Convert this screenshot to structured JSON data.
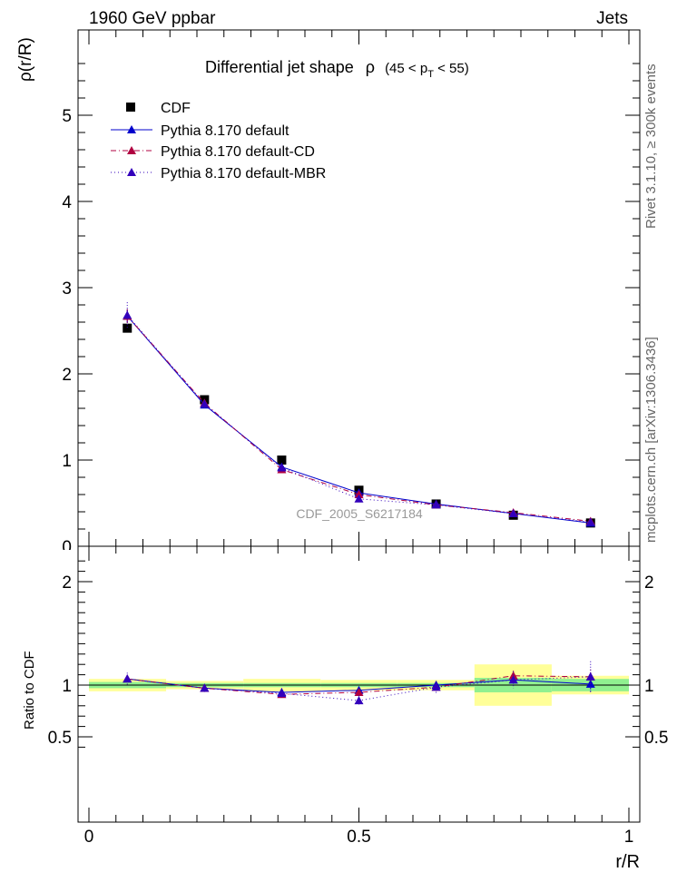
{
  "header": {
    "left": "1960 GeV ppbar",
    "right": "Jets"
  },
  "title": {
    "main": "Differential jet shape",
    "rho": "ρ",
    "range_open": "(45 < p",
    "range_sub": "T",
    "range_close": " < 55)"
  },
  "side": {
    "rivet": "Rivet 3.1.10, ≥ 300k events",
    "mcplots": "mcplots.cern.ch [arXiv:1306.3436]"
  },
  "watermark": "CDF_2005_S6217184",
  "colors": {
    "data": "#000000",
    "default": "#0000cc",
    "cd": "#b00040",
    "mbr": "#3300bb",
    "band_inner": "#90f090",
    "band_outer": "#ffff99"
  },
  "chart_data": [
    {
      "type": "line",
      "xlabel": "r/R",
      "ylabel": "ρ(r/R)",
      "xlim": [
        0,
        1
      ],
      "ylim": [
        0,
        6
      ],
      "yticks": [
        0,
        1,
        2,
        3,
        4,
        5
      ],
      "x": [
        0.071,
        0.214,
        0.357,
        0.5,
        0.643,
        0.786,
        0.929
      ],
      "series": [
        {
          "name": "CDF",
          "marker": "square",
          "values": [
            2.53,
            1.7,
            1.0,
            0.65,
            0.49,
            0.36,
            0.27
          ],
          "errors": [
            0.04,
            0.04,
            0.03,
            0.02,
            0.02,
            0.02,
            0.02
          ]
        },
        {
          "name": "Pythia 8.170 default",
          "marker": "triangle",
          "line": "solid",
          "values": [
            2.67,
            1.64,
            0.92,
            0.62,
            0.49,
            0.38,
            0.27
          ],
          "errors": [
            0.08,
            0.04,
            0.03,
            0.02,
            0.02,
            0.02,
            0.02
          ]
        },
        {
          "name": "Pythia 8.170 default-CD",
          "marker": "triangle",
          "line": "dashdot",
          "values": [
            2.67,
            1.66,
            0.89,
            0.6,
            0.48,
            0.39,
            0.29
          ],
          "errors": [
            0.08,
            0.04,
            0.03,
            0.02,
            0.02,
            0.02,
            0.02
          ]
        },
        {
          "name": "Pythia 8.170 default-MBR",
          "marker": "triangle",
          "line": "dotted",
          "values": [
            2.68,
            1.65,
            0.91,
            0.55,
            0.48,
            0.38,
            0.28
          ],
          "errors": [
            0.15,
            0.05,
            0.04,
            0.03,
            0.02,
            0.02,
            0.02
          ]
        }
      ],
      "legend": "top-left"
    },
    {
      "type": "line",
      "xlabel": "r/R",
      "ylabel": "Ratio to CDF",
      "xlim": [
        0,
        1
      ],
      "ylim": [
        0.33,
        2.3
      ],
      "yticks": [
        0.5,
        1,
        2
      ],
      "bin_edges": [
        0,
        0.143,
        0.286,
        0.429,
        0.571,
        0.714,
        0.857,
        1.0
      ],
      "band_inner": [
        0.03,
        0.02,
        0.02,
        0.02,
        0.02,
        0.07,
        0.06
      ],
      "band_outer": [
        0.06,
        0.04,
        0.06,
        0.05,
        0.05,
        0.2,
        0.09
      ],
      "x": [
        0.071,
        0.214,
        0.357,
        0.5,
        0.643,
        0.786,
        0.929
      ],
      "series": [
        {
          "name": "Pythia 8.170 default",
          "values": [
            1.06,
            0.97,
            0.93,
            0.95,
            1.0,
            1.05,
            1.01
          ],
          "errors": [
            0.03,
            0.03,
            0.03,
            0.03,
            0.04,
            0.05,
            0.07
          ]
        },
        {
          "name": "Pythia 8.170 default-CD",
          "values": [
            1.06,
            0.97,
            0.91,
            0.93,
            0.98,
            1.09,
            1.08
          ],
          "errors": [
            0.03,
            0.03,
            0.03,
            0.03,
            0.04,
            0.05,
            0.07
          ]
        },
        {
          "name": "Pythia 8.170 default-MBR",
          "values": [
            1.06,
            0.97,
            0.92,
            0.85,
            0.98,
            1.05,
            1.08
          ],
          "errors": [
            0.06,
            0.04,
            0.05,
            0.05,
            0.06,
            0.08,
            0.15
          ]
        }
      ]
    }
  ]
}
